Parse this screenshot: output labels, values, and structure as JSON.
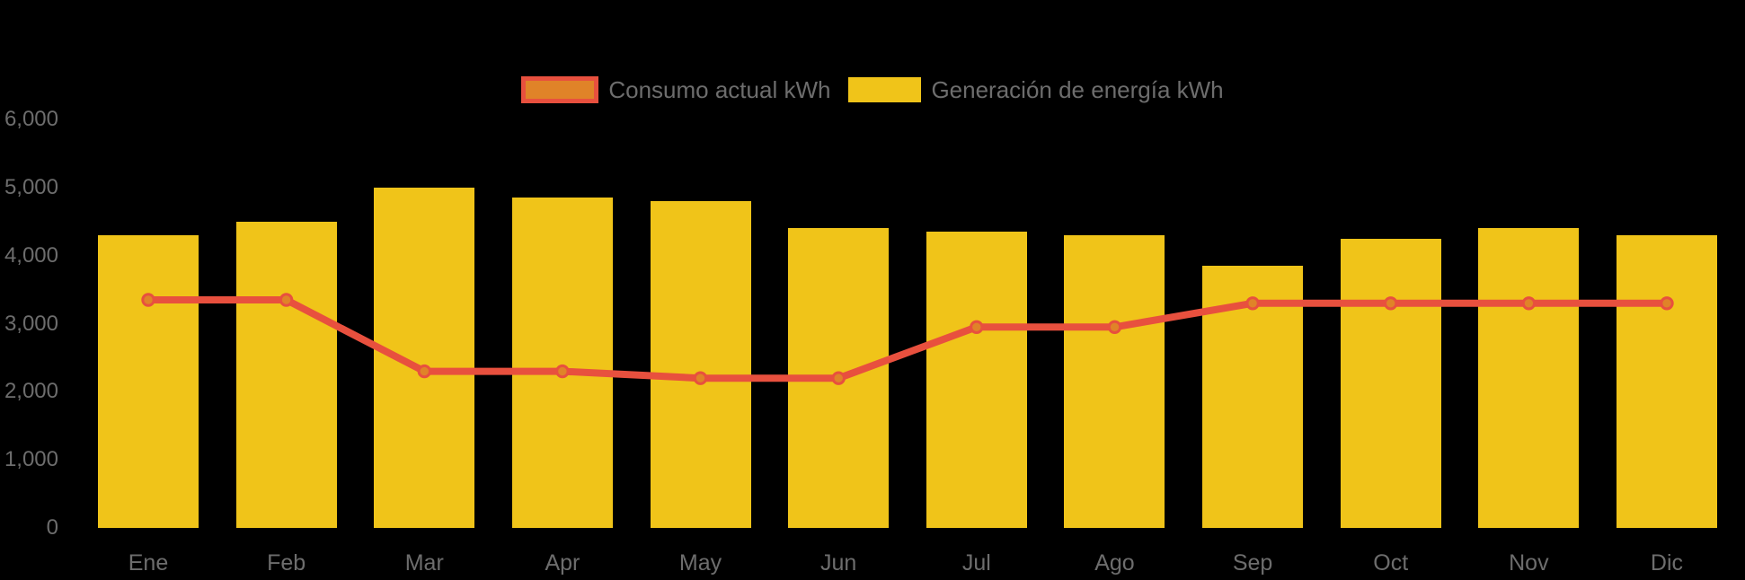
{
  "colors": {
    "background": "#000000",
    "bar": "#F0C419",
    "line": "#E8503E",
    "marker_fill": "#E08328",
    "text": "#6D6D6D"
  },
  "legend": {
    "items": [
      {
        "label": "Consumo actual kWh",
        "swatch": "line-series-swatch"
      },
      {
        "label": "Generación de energía kWh",
        "swatch": "bar-series-swatch"
      }
    ]
  },
  "y_axis": {
    "ticks": [
      {
        "value": 0,
        "label": "0"
      },
      {
        "value": 1000,
        "label": "1,000"
      },
      {
        "value": 2000,
        "label": "2,000"
      },
      {
        "value": 3000,
        "label": "3,000"
      },
      {
        "value": 4000,
        "label": "4,000"
      },
      {
        "value": 5000,
        "label": "5,000"
      },
      {
        "value": 6000,
        "label": "6,000"
      }
    ]
  },
  "chart_data": {
    "type": "bar+line",
    "title": "",
    "xlabel": "",
    "ylabel": "",
    "ylim": [
      0,
      6000
    ],
    "grid": false,
    "legend_position": "top-center",
    "categories": [
      "Ene",
      "Feb",
      "Mar",
      "Apr",
      "May",
      "Jun",
      "Jul",
      "Ago",
      "Sep",
      "Oct",
      "Nov",
      "Dic"
    ],
    "series": [
      {
        "name": "Consumo actual kWh",
        "type": "line",
        "color": "#E8503E",
        "marker": "circle",
        "values": [
          3350,
          3350,
          2300,
          2300,
          2200,
          2200,
          2950,
          2950,
          3300,
          3300,
          3300,
          3300
        ]
      },
      {
        "name": "Generación de energía kWh",
        "type": "bar",
        "color": "#F0C419",
        "values": [
          4300,
          4500,
          5000,
          4850,
          4800,
          4400,
          4350,
          4300,
          3850,
          4250,
          4400,
          4300
        ]
      }
    ]
  }
}
